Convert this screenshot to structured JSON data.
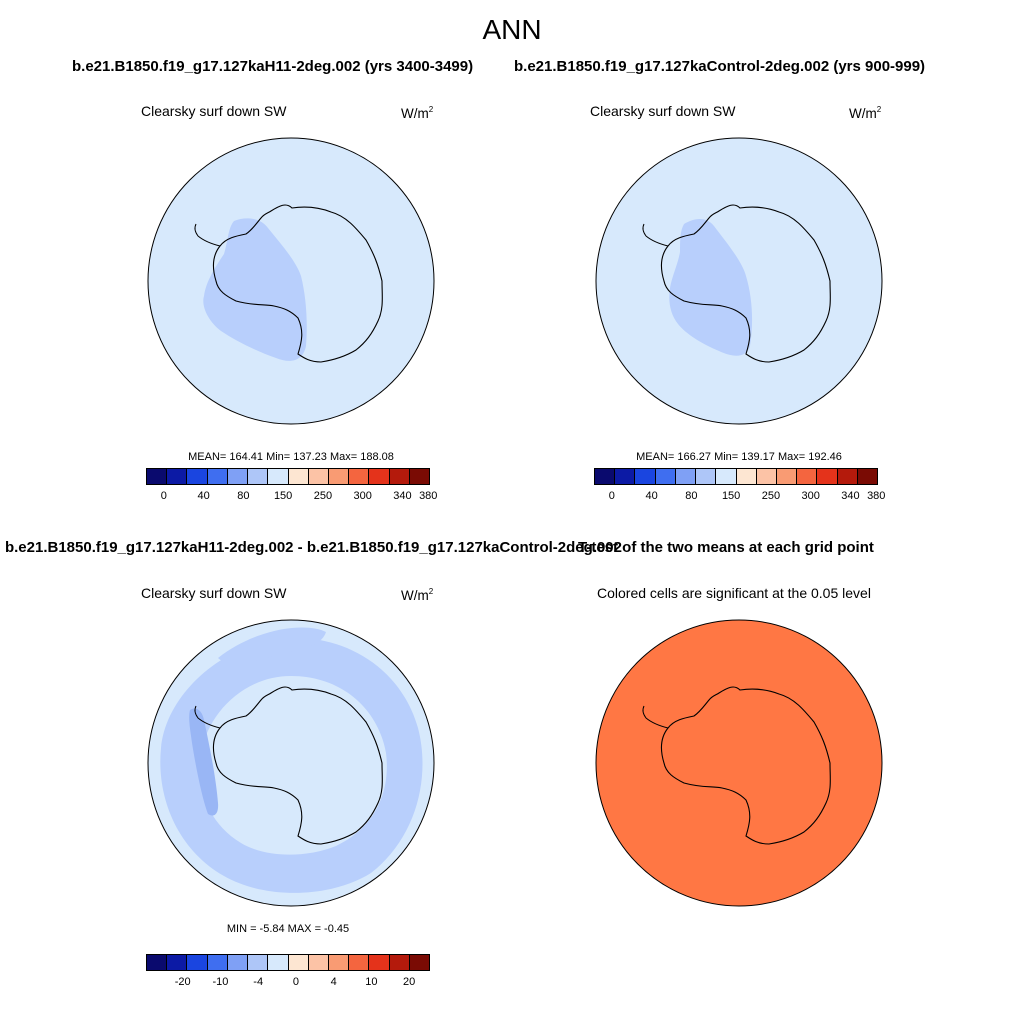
{
  "main_title": "ANN",
  "panels": {
    "top_left": {
      "case_title": "b.e21.B1850.f19_g17.127kaH11-2deg.002 (yrs 3400-3499)",
      "variable": "Clearsky surf down SW",
      "units_base": "W/m",
      "units_exp": "2",
      "stats": "MEAN= 164.41  Min= 137.23  Max= 188.08",
      "fill": "#d7e9fc",
      "patch": "#b8cffc"
    },
    "top_right": {
      "case_title": "b.e21.B1850.f19_g17.127kaControl-2deg.002 (yrs 900-999)",
      "variable": "Clearsky surf down SW",
      "units_base": "W/m",
      "units_exp": "2",
      "stats": "MEAN= 166.27  Min= 139.17  Max= 192.46",
      "fill": "#d7e9fc",
      "patch": "#b8cffc"
    },
    "bottom_left": {
      "case_title": "b.e21.B1850.f19_g17.127kaH11-2deg.002 - b.e21.B1850.f19_g17.127kaControl-2deg.002",
      "variable": "Clearsky surf down SW",
      "units_base": "W/m",
      "units_exp": "2",
      "stats": "MIN =  -5.84 MAX =  -0.45",
      "fill": "#d7e9fc",
      "patch": "#b8cffc",
      "patch_dark": "#99b6f5"
    },
    "bottom_right": {
      "case_title": "T-test of the two means at each grid point",
      "subtitle": "Colored cells are significant at the 0.05 level",
      "fill": "#ff7744"
    }
  },
  "colorbar_colors": [
    "#0a0a6e",
    "#0c1aa5",
    "#1a45e0",
    "#3f6ef0",
    "#7fa0f5",
    "#aec6f8",
    "#d7e9fc",
    "#fde6d2",
    "#fcc3a6",
    "#f99b73",
    "#f4653f",
    "#e4331b",
    "#b41a0c",
    "#7a0b04"
  ],
  "colorbar_top": {
    "ticks": [
      "0",
      "40",
      "80",
      "150",
      "250",
      "300",
      "340",
      "380"
    ]
  },
  "colorbar_diff": {
    "ticks": [
      "-20",
      "-10",
      "-4",
      "0",
      "4",
      "10",
      "20"
    ]
  }
}
